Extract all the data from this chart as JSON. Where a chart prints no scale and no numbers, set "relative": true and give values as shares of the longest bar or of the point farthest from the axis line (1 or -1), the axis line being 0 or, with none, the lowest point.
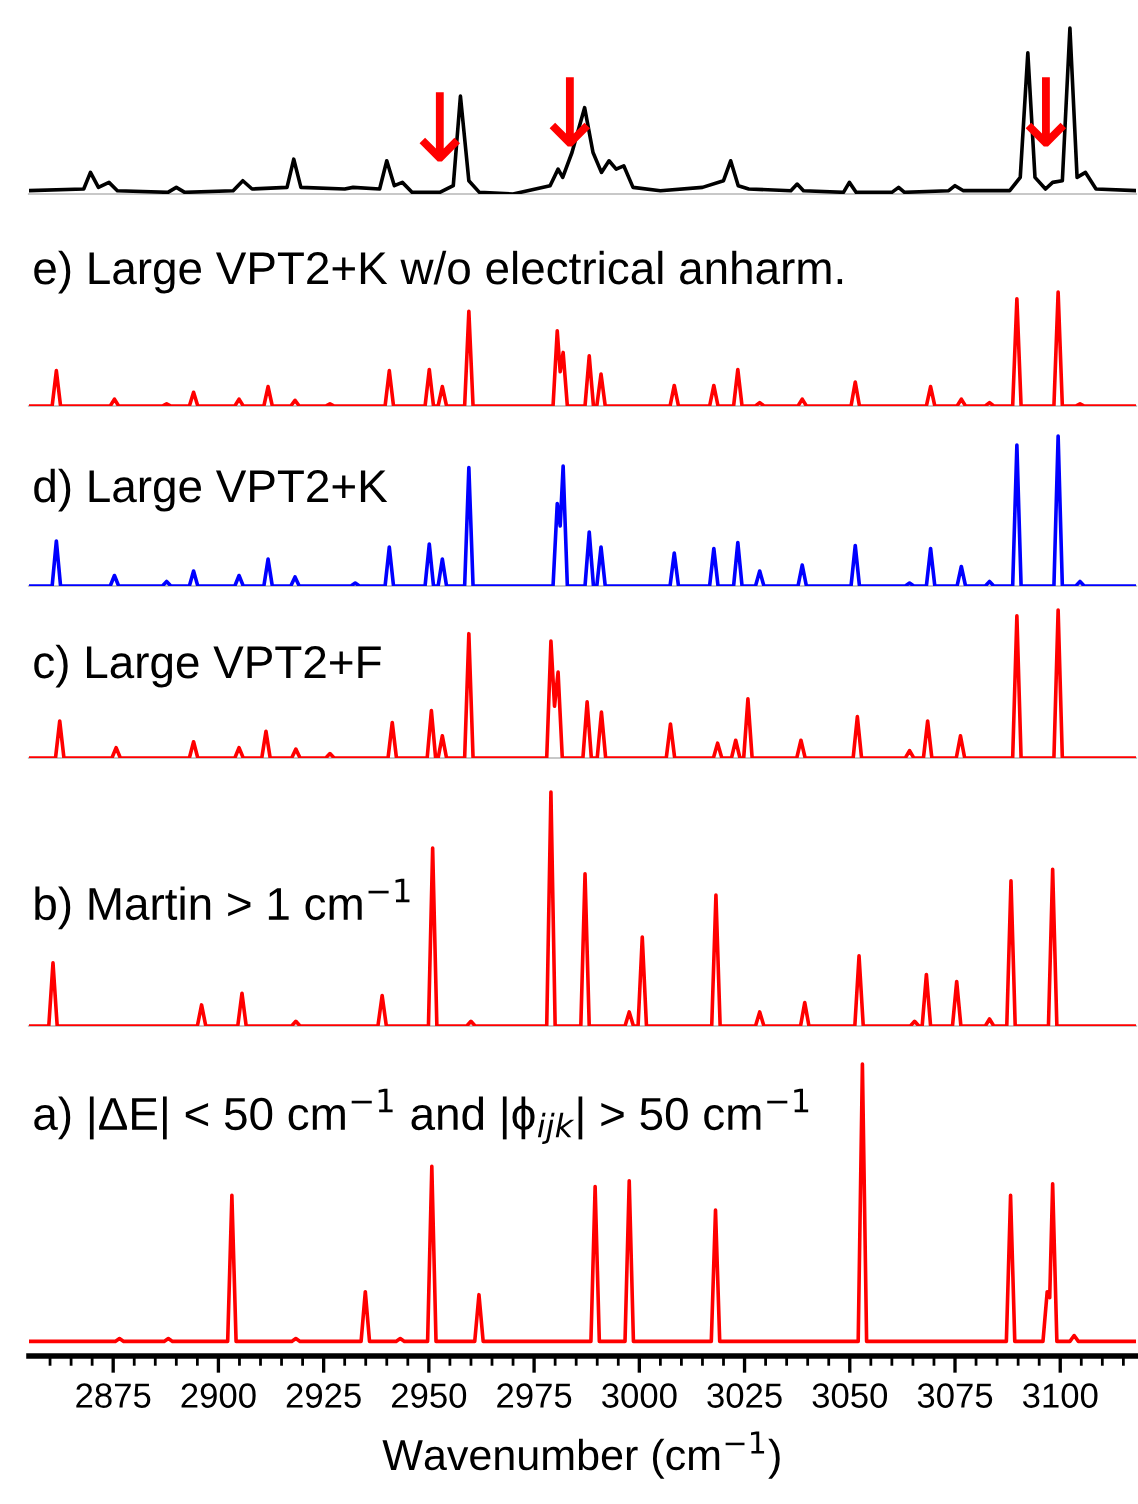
{
  "chart_data": [
    {
      "type": "line",
      "relative": true,
      "tick_labels": false,
      "xlim": [
        2855,
        3118
      ],
      "series": [
        {
          "color": "#000000",
          "x": [
            2855,
            2868,
            2869.6,
            2871.5,
            2874,
            2876,
            2888,
            2890,
            2892,
            2903.5,
            2905.8,
            2908,
            2916.3,
            2917.9,
            2919.6,
            2930,
            2932,
            2938.3,
            2940,
            2941.8,
            2943.7,
            2946,
            2952.6,
            2955.8,
            2957.5,
            2959.5,
            2962,
            2970,
            2978.8,
            2980.7,
            2981.8,
            2984,
            2987,
            2989,
            2991,
            2992.8,
            2994.5,
            2996.3,
            2998.5,
            3005,
            3015,
            3020,
            3021.7,
            3023.5,
            3026,
            3036,
            3037.5,
            3039,
            3048.5,
            3049.9,
            3051.5,
            3060,
            3061.6,
            3063,
            3073.5,
            3075,
            3077,
            3088,
            3090.5,
            3092.3,
            3094,
            3096.5,
            3098.2,
            3100.5,
            3102.3,
            3104,
            3106,
            3108.5,
            3118
          ],
          "values": [
            0.02,
            0.03,
            0.13,
            0.04,
            0.07,
            0.02,
            0.01,
            0.04,
            0.01,
            0.02,
            0.08,
            0.03,
            0.04,
            0.21,
            0.04,
            0.03,
            0.04,
            0.03,
            0.2,
            0.05,
            0.07,
            0.01,
            0.01,
            0.05,
            0.59,
            0.08,
            0.01,
            0,
            0.05,
            0.15,
            0.1,
            0.25,
            0.52,
            0.25,
            0.13,
            0.2,
            0.15,
            0.17,
            0.04,
            0.02,
            0.04,
            0.08,
            0.2,
            0.05,
            0.03,
            0.02,
            0.06,
            0.02,
            0.01,
            0.07,
            0.01,
            0.01,
            0.04,
            0.01,
            0.02,
            0.05,
            0.02,
            0.02,
            0.1,
            0.85,
            0.1,
            0.03,
            0.07,
            0.08,
            1.0,
            0.1,
            0.13,
            0.03,
            0.02
          ]
        }
      ],
      "annotations": [
        {
          "text": "↓",
          "x": 2952.6,
          "y": 0.08
        },
        {
          "text": "↓",
          "x": 2983.5,
          "y": 0.17
        },
        {
          "text": "↓",
          "x": 3096.6,
          "y": 0.17
        }
      ]
    },
    {
      "type": "line",
      "relative": true,
      "tick_labels": false,
      "xlim": [
        2855,
        3118
      ],
      "title": "e) Large VPT2+K w/o electrical anharm.",
      "series": [
        {
          "color": "#ff0000",
          "x": [
            2855,
            2860.5,
            2861.5,
            2862.5,
            2874.3,
            2875.3,
            2876.3,
            2886.7,
            2887.7,
            2888.7,
            2893.1,
            2894.1,
            2895.1,
            2903.9,
            2904.9,
            2905.9,
            2910.8,
            2911.8,
            2912.8,
            2917.2,
            2918.2,
            2919.2,
            2925.5,
            2926.5,
            2927.5,
            2939.6,
            2940.6,
            2941.6,
            2949.1,
            2950.1,
            2951.1,
            2952.2,
            2953.2,
            2954.2,
            2958.5,
            2959.5,
            2960.5,
            2979.5,
            2980.5,
            2981.2,
            2981.9,
            2982.9,
            2987.1,
            2988.1,
            2989.1,
            2989.9,
            2990.9,
            2991.9,
            3007.3,
            3008.3,
            3009.3,
            3016.7,
            3017.7,
            3018.7,
            3022.4,
            3023.4,
            3024.4,
            3027.6,
            3028.6,
            3029.6,
            3037.7,
            3038.7,
            3039.7,
            3050.3,
            3051.3,
            3052.3,
            3068.2,
            3069.2,
            3070.2,
            3075.5,
            3076.5,
            3077.5,
            3082.2,
            3083.2,
            3084.2,
            3088.7,
            3089.7,
            3090.7,
            3098.5,
            3099.5,
            3100.5,
            3103.7,
            3104.7,
            3105.7,
            3118
          ],
          "values": [
            0,
            0,
            0.31,
            0,
            0,
            0.06,
            0,
            0,
            0.02,
            0,
            0,
            0.12,
            0,
            0,
            0.06,
            0,
            0,
            0.17,
            0,
            0,
            0.05,
            0,
            0,
            0.02,
            0,
            0,
            0.31,
            0,
            0,
            0.32,
            0,
            0,
            0.17,
            0,
            0,
            0.83,
            0,
            0,
            0.66,
            0.3,
            0.47,
            0,
            0,
            0.44,
            0,
            0,
            0.28,
            0,
            0,
            0.18,
            0,
            0,
            0.18,
            0,
            0,
            0.32,
            0,
            0,
            0.03,
            0,
            0,
            0.06,
            0,
            0,
            0.21,
            0,
            0,
            0.17,
            0,
            0,
            0.06,
            0,
            0,
            0.03,
            0,
            0,
            0.94,
            0,
            0,
            1,
            0,
            0,
            0.02,
            0,
            0
          ]
        }
      ]
    },
    {
      "type": "line",
      "relative": true,
      "tick_labels": false,
      "xlim": [
        2855,
        3118
      ],
      "title": "d) Large VPT2+K",
      "series": [
        {
          "color": "#0000ff",
          "x": [
            2855,
            2860.5,
            2861.5,
            2862.5,
            2874.3,
            2875.3,
            2876.3,
            2886.7,
            2887.7,
            2888.7,
            2893.1,
            2894.1,
            2895.1,
            2903.9,
            2904.9,
            2905.9,
            2910.8,
            2911.8,
            2912.8,
            2917.2,
            2918.2,
            2919.2,
            2931.5,
            2932.5,
            2933.5,
            2939.6,
            2940.6,
            2941.6,
            2949.1,
            2950.1,
            2951.1,
            2952.2,
            2953.2,
            2954.2,
            2958.5,
            2959.5,
            2960.5,
            2979.5,
            2980.5,
            2981.2,
            2981.9,
            2982.9,
            2987.1,
            2988.1,
            2989.1,
            2989.9,
            2990.9,
            2991.9,
            3007.3,
            3008.3,
            3009.3,
            3016.7,
            3017.7,
            3018.7,
            3022.4,
            3023.4,
            3024.4,
            3027.6,
            3028.6,
            3029.6,
            3037.7,
            3038.7,
            3039.7,
            3050.3,
            3051.3,
            3052.3,
            3063.2,
            3064.2,
            3065.2,
            3068.2,
            3069.2,
            3070.2,
            3075.5,
            3076.5,
            3077.5,
            3082.2,
            3083.2,
            3084.2,
            3088.7,
            3089.7,
            3090.7,
            3098.5,
            3099.5,
            3100.5,
            3103.7,
            3104.7,
            3105.7,
            3118
          ],
          "values": [
            0,
            0,
            0.3,
            0,
            0,
            0.07,
            0,
            0,
            0.03,
            0,
            0,
            0.1,
            0,
            0,
            0.07,
            0,
            0,
            0.18,
            0,
            0,
            0.06,
            0,
            0,
            0.02,
            0,
            0,
            0.26,
            0,
            0,
            0.28,
            0,
            0,
            0.18,
            0,
            0,
            0.79,
            0,
            0,
            0.55,
            0.4,
            0.8,
            0,
            0,
            0.36,
            0,
            0,
            0.26,
            0,
            0,
            0.22,
            0,
            0,
            0.25,
            0,
            0,
            0.29,
            0,
            0,
            0.1,
            0,
            0,
            0.14,
            0,
            0,
            0.27,
            0,
            0,
            0.02,
            0,
            0,
            0.25,
            0,
            0,
            0.13,
            0,
            0,
            0.03,
            0,
            0,
            0.94,
            0,
            0,
            1,
            0,
            0,
            0.03,
            0,
            0
          ]
        }
      ]
    },
    {
      "type": "line",
      "relative": true,
      "tick_labels": false,
      "xlim": [
        2855,
        3118
      ],
      "title": "c) Large VPT2+F",
      "series": [
        {
          "color": "#ff0000",
          "x": [
            2855,
            2861.3,
            2862.3,
            2863.3,
            2874.7,
            2875.7,
            2876.7,
            2893.1,
            2894.1,
            2895.1,
            2903.9,
            2904.9,
            2905.9,
            2910.3,
            2911.3,
            2912.3,
            2917.4,
            2918.4,
            2919.4,
            2925.5,
            2926.5,
            2927.5,
            2940.3,
            2941.3,
            2942.3,
            2949.6,
            2950.6,
            2951.6,
            2952.2,
            2953.2,
            2954.2,
            2958.5,
            2959.5,
            2960.5,
            2978,
            2979,
            2979.85,
            2980.7,
            2981.7,
            2986.6,
            2987.6,
            2988.6,
            2990,
            2991,
            2992,
            3006.4,
            3007.4,
            3008.4,
            3017.6,
            3018.6,
            3019.6,
            3021.9,
            3022.9,
            3023.9,
            3024.8,
            3025.8,
            3026.8,
            3037.4,
            3038.4,
            3039.4,
            3050.8,
            3051.8,
            3052.8,
            3063.2,
            3064.2,
            3065.2,
            3067.5,
            3068.5,
            3069.5,
            3075.3,
            3076.3,
            3077.3,
            3088.7,
            3089.7,
            3090.7,
            3098.5,
            3099.5,
            3100.5,
            3118
          ],
          "values": [
            0,
            0,
            0.25,
            0,
            0,
            0.07,
            0,
            0,
            0.11,
            0,
            0,
            0.07,
            0,
            0,
            0.18,
            0,
            0,
            0.06,
            0,
            0,
            0.03,
            0,
            0,
            0.24,
            0,
            0,
            0.32,
            0,
            0,
            0.15,
            0,
            0,
            0.84,
            0,
            0,
            0.79,
            0.35,
            0.58,
            0,
            0,
            0.38,
            0,
            0,
            0.31,
            0,
            0,
            0.23,
            0,
            0,
            0.1,
            0,
            0,
            0.12,
            0,
            0,
            0.4,
            0,
            0,
            0.12,
            0,
            0,
            0.28,
            0,
            0,
            0.05,
            0,
            0,
            0.25,
            0,
            0,
            0.15,
            0,
            0,
            0.96,
            0,
            0,
            1,
            0,
            0
          ]
        }
      ]
    },
    {
      "type": "line",
      "relative": true,
      "tick_labels": false,
      "xlim": [
        2855,
        3118
      ],
      "title": "b) Martin > 1 cm$^{−1}$",
      "series": [
        {
          "color": "#ff0000",
          "x": [
            2855,
            2859.7,
            2860.7,
            2861.7,
            2895,
            2896,
            2897,
            2904.6,
            2905.6,
            2906.6,
            2917.4,
            2918.4,
            2919.4,
            2937.9,
            2938.9,
            2939.9,
            2949.9,
            2950.9,
            2951.9,
            2959,
            2960,
            2961,
            2978,
            2979,
            2980,
            2986.1,
            2987.1,
            2988.1,
            2996.6,
            2997.6,
            2998.6,
            2999.7,
            3000.7,
            3001.7,
            3017.2,
            3018.2,
            3019.2,
            3027.6,
            3028.6,
            3029.6,
            3038.3,
            3039.3,
            3040.3,
            3051.2,
            3052.2,
            3053.2,
            3064.4,
            3065.4,
            3066.4,
            3067.2,
            3068.2,
            3069.2,
            3074.4,
            3075.4,
            3076.4,
            3082.2,
            3083.2,
            3084.2,
            3087.3,
            3088.3,
            3089.3,
            3097.2,
            3098.2,
            3099.2,
            3118
          ],
          "values": [
            0,
            0,
            0.27,
            0,
            0,
            0.09,
            0,
            0,
            0.14,
            0,
            0,
            0.02,
            0,
            0,
            0.13,
            0,
            0,
            0.76,
            0,
            0,
            0.02,
            0,
            0,
            1,
            0,
            0,
            0.65,
            0,
            0,
            0.06,
            0,
            0,
            0.38,
            0,
            0,
            0.56,
            0,
            0,
            0.06,
            0,
            0,
            0.1,
            0,
            0,
            0.3,
            0,
            0,
            0.02,
            0,
            0,
            0.22,
            0,
            0,
            0.19,
            0,
            0,
            0.03,
            0,
            0,
            0.62,
            0,
            0,
            0.67,
            0,
            0
          ]
        }
      ]
    },
    {
      "type": "line",
      "relative": true,
      "tick_labels": "x",
      "xlim": [
        2855,
        3118
      ],
      "title": "a) |ΔE| < 50 cm$^{−1}$ and |ϕ$_{ijk}$| > 50 cm$^{−1}$",
      "xlabel": "Wavenumber (cm$^{−1}$)",
      "xticks": [
        {
          "value": 2860,
          "label": null
        },
        {
          "value": 2865,
          "label": null
        },
        {
          "value": 2870,
          "label": null
        },
        2875,
        {
          "value": 2880,
          "label": null
        },
        {
          "value": 2885,
          "label": null
        },
        {
          "value": 2890,
          "label": null
        },
        {
          "value": 2895,
          "label": null
        },
        2900,
        {
          "value": 2905,
          "label": null
        },
        {
          "value": 2910,
          "label": null
        },
        {
          "value": 2915,
          "label": null
        },
        {
          "value": 2920,
          "label": null
        },
        2925,
        {
          "value": 2930,
          "label": null
        },
        {
          "value": 2935,
          "label": null
        },
        {
          "value": 2940,
          "label": null
        },
        {
          "value": 2945,
          "label": null
        },
        2950,
        {
          "value": 2955,
          "label": null
        },
        {
          "value": 2960,
          "label": null
        },
        {
          "value": 2965,
          "label": null
        },
        {
          "value": 2970,
          "label": null
        },
        2975,
        {
          "value": 2980,
          "label": null
        },
        {
          "value": 2985,
          "label": null
        },
        {
          "value": 2990,
          "label": null
        },
        {
          "value": 2995,
          "label": null
        },
        3000,
        {
          "value": 3005,
          "label": null
        },
        {
          "value": 3010,
          "label": null
        },
        {
          "value": 3015,
          "label": null
        },
        {
          "value": 3020,
          "label": null
        },
        3025,
        {
          "value": 3030,
          "label": null
        },
        {
          "value": 3035,
          "label": null
        },
        {
          "value": 3040,
          "label": null
        },
        {
          "value": 3045,
          "label": null
        },
        3050,
        {
          "value": 3055,
          "label": null
        },
        {
          "value": 3060,
          "label": null
        },
        {
          "value": 3065,
          "label": null
        },
        {
          "value": 3070,
          "label": null
        },
        3075,
        {
          "value": 3080,
          "label": null
        },
        {
          "value": 3085,
          "label": null
        },
        {
          "value": 3090,
          "label": null
        },
        {
          "value": 3095,
          "label": null
        },
        3100,
        {
          "value": 3105,
          "label": null
        },
        {
          "value": 3110,
          "label": null
        },
        {
          "value": 3115,
          "label": null
        }
      ],
      "series": [
        {
          "color": "#ff0000",
          "x": [
            2855,
            2875.5,
            2876.5,
            2877.5,
            2887.1,
            2888.1,
            2889.1,
            2902.2,
            2903.2,
            2904.2,
            2917.4,
            2918.4,
            2919.4,
            2933.9,
            2934.9,
            2935.9,
            2942.2,
            2943.2,
            2944.2,
            2949.7,
            2950.7,
            2951.7,
            2960.9,
            2961.9,
            2962.9,
            2988.5,
            2989.5,
            2990.5,
            2996.6,
            2997.6,
            2998.6,
            3017.1,
            3018.1,
            3019.1,
            3052,
            3053,
            3054,
            3087.2,
            3088.2,
            3089.2,
            3095.9,
            3096.9,
            3097.5,
            3098.2,
            3099.2,
            3102.3,
            3103.3,
            3104.3,
            3118
          ],
          "values": [
            0.05,
            0.05,
            0.06,
            0.05,
            0.05,
            0.06,
            0.05,
            0.05,
            0.55,
            0.05,
            0.05,
            0.06,
            0.05,
            0.05,
            0.22,
            0.05,
            0.05,
            0.06,
            0.05,
            0.05,
            0.65,
            0.05,
            0.05,
            0.21,
            0.05,
            0.05,
            0.58,
            0.05,
            0.05,
            0.6,
            0.05,
            0.05,
            0.5,
            0.05,
            0.05,
            1,
            0.05,
            0.05,
            0.55,
            0.05,
            0.05,
            0.22,
            0.2,
            0.59,
            0.05,
            0.05,
            0.07,
            0.05,
            0.05
          ]
        }
      ]
    }
  ]
}
